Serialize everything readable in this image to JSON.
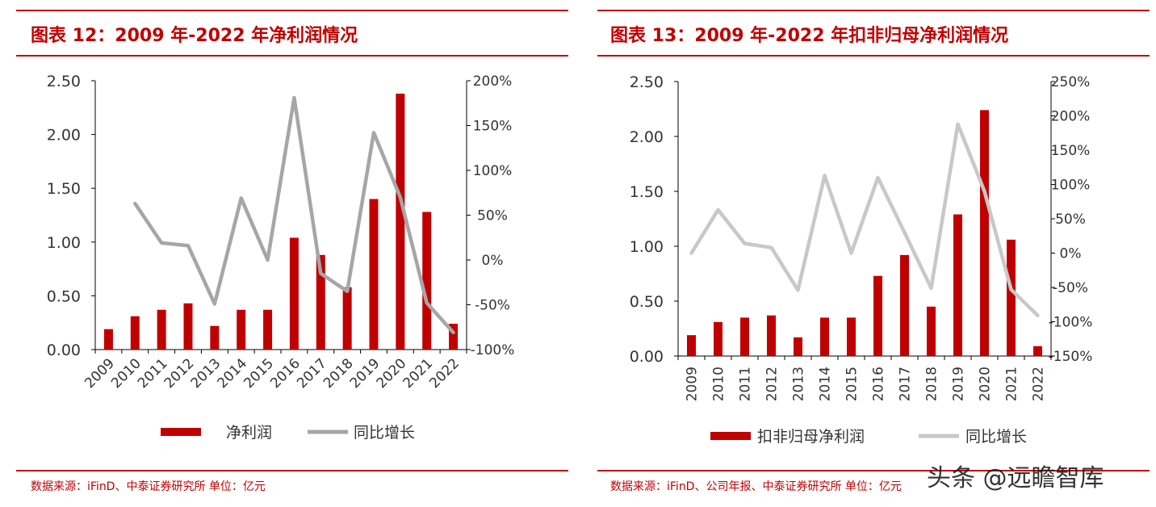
{
  "panels": [
    {
      "title": "图表 12：2009 年-2022 年净利润情况",
      "source": "数据来源：iFinD、中泰证券研究所  单位：亿元"
    },
    {
      "title": "图表 13：2009 年-2022 年扣非归母净利润情况",
      "source": "数据来源：iFinD、公司年报、中泰证券研究所  单位：亿元"
    }
  ],
  "watermark": "头条 @远瞻智库",
  "chart_data": [
    {
      "type": "bar",
      "categories": [
        "2009",
        "2010",
        "2011",
        "2012",
        "2013",
        "2014",
        "2015",
        "2016",
        "2017",
        "2018",
        "2019",
        "2020",
        "2021",
        "2022"
      ],
      "series": [
        {
          "name": "净利润",
          "type": "bar",
          "axis": "left",
          "color": "#c00000",
          "values": [
            0.19,
            0.31,
            0.37,
            0.43,
            0.22,
            0.37,
            0.37,
            1.04,
            0.88,
            0.58,
            1.4,
            2.38,
            1.28,
            0.24
          ]
        },
        {
          "name": "同比增长",
          "type": "line",
          "axis": "right",
          "color": "#a6a6a6",
          "values": [
            null,
            63,
            19,
            16,
            -49,
            69,
            0,
            181,
            -15,
            -35,
            142,
            70,
            -48,
            -81
          ]
        }
      ],
      "y_left": {
        "min": 0,
        "max": 2.5,
        "ticks": [
          "0.00",
          "0.50",
          "1.00",
          "1.50",
          "2.00",
          "2.50"
        ]
      },
      "y_right": {
        "min": -100,
        "max": 200,
        "ticks": [
          "-100%",
          "-50%",
          "0%",
          "50%",
          "100%",
          "150%",
          "200%"
        ]
      },
      "legend": {
        "position": "bottom"
      },
      "grid": false
    },
    {
      "type": "bar",
      "categories": [
        "2009",
        "2010",
        "2011",
        "2012",
        "2013",
        "2014",
        "2015",
        "2016",
        "2017",
        "2018",
        "2019",
        "2020",
        "2021",
        "2022"
      ],
      "series": [
        {
          "name": "扣非归母净利润",
          "type": "bar",
          "axis": "left",
          "color": "#c00000",
          "values": [
            0.19,
            0.31,
            0.35,
            0.37,
            0.17,
            0.35,
            0.35,
            0.73,
            0.92,
            0.45,
            1.29,
            2.24,
            1.06,
            0.09
          ]
        },
        {
          "name": "同比增长",
          "type": "line",
          "axis": "right",
          "color": "#c8c8c8",
          "values": [
            0,
            63,
            14,
            8,
            -54,
            113,
            0,
            110,
            30,
            -51,
            188,
            90,
            -53,
            -91
          ]
        }
      ],
      "y_left": {
        "min": 0,
        "max": 2.5,
        "ticks": [
          "0.00",
          "0.50",
          "1.00",
          "1.50",
          "2.00",
          "2.50"
        ]
      },
      "y_right": {
        "min": -150,
        "max": 250,
        "ticks": [
          "-150%",
          "-100%",
          "-50%",
          "0%",
          "50%",
          "100%",
          "150%",
          "200%",
          "250%"
        ]
      },
      "legend": {
        "position": "bottom"
      },
      "grid": false
    }
  ]
}
